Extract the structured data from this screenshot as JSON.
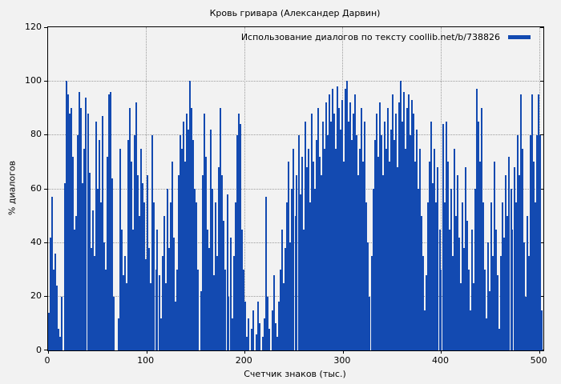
{
  "title": "Кровь гривара (Александер Дарвин)",
  "legend": {
    "label": "Использование диалогов по тексту coollib.net/b/738826"
  },
  "axes": {
    "xlabel": "Счетчик знаков (тыс.)",
    "ylabel": "% диалогов",
    "x_ticks": [
      0,
      100,
      200,
      300,
      400,
      500
    ],
    "y_ticks": [
      0,
      20,
      40,
      60,
      80,
      100,
      120
    ],
    "xlim": [
      0,
      504
    ],
    "ylim": [
      0,
      120
    ],
    "grid": true,
    "legend_position": "top-right-inside"
  },
  "colors": {
    "bar": "#134ab1",
    "background": "#f2f2f2",
    "grid": "#9d9d9d",
    "frame": "#000000",
    "text": "#000000"
  },
  "chart_data": {
    "type": "bar",
    "title": "Кровь гривара (Александер Дарвин)",
    "xlabel": "Счетчик знаков (тыс.)",
    "ylabel": "% диалогов",
    "xlim": [
      0,
      504
    ],
    "ylim": [
      0,
      120
    ],
    "series": [
      {
        "name": "Использование диалогов по тексту coollib.net/b/738826",
        "points": [
          [
            0.8,
            14
          ],
          [
            2.4,
            42
          ],
          [
            4.1,
            57
          ],
          [
            5.7,
            30
          ],
          [
            7.4,
            36
          ],
          [
            9.0,
            24
          ],
          [
            10.7,
            8
          ],
          [
            12.3,
            5
          ],
          [
            14.0,
            20
          ],
          [
            15.6,
            0
          ],
          [
            17.3,
            62
          ],
          [
            18.9,
            100
          ],
          [
            20.6,
            95
          ],
          [
            22.2,
            88
          ],
          [
            23.9,
            90
          ],
          [
            25.5,
            72
          ],
          [
            27.2,
            45
          ],
          [
            28.8,
            50
          ],
          [
            30.5,
            80
          ],
          [
            32.1,
            96
          ],
          [
            33.8,
            90
          ],
          [
            35.4,
            62
          ],
          [
            37.1,
            75
          ],
          [
            38.7,
            94
          ],
          [
            40.4,
            88
          ],
          [
            42.0,
            66
          ],
          [
            43.7,
            38
          ],
          [
            45.3,
            52
          ],
          [
            47.0,
            35
          ],
          [
            48.6,
            85
          ],
          [
            50.3,
            60
          ],
          [
            51.9,
            78
          ],
          [
            53.6,
            55
          ],
          [
            55.2,
            87
          ],
          [
            56.9,
            40
          ],
          [
            58.5,
            30
          ],
          [
            60.2,
            72
          ],
          [
            61.8,
            95
          ],
          [
            63.5,
            96
          ],
          [
            65.1,
            64
          ],
          [
            66.8,
            20
          ],
          [
            68.4,
            0
          ],
          [
            70.1,
            0
          ],
          [
            71.7,
            12
          ],
          [
            73.4,
            75
          ],
          [
            75.0,
            45
          ],
          [
            76.7,
            28
          ],
          [
            78.3,
            35
          ],
          [
            80.0,
            25
          ],
          [
            81.6,
            78
          ],
          [
            83.3,
            90
          ],
          [
            84.9,
            70
          ],
          [
            86.6,
            45
          ],
          [
            88.2,
            80
          ],
          [
            89.9,
            92
          ],
          [
            91.5,
            65
          ],
          [
            93.2,
            50
          ],
          [
            94.8,
            75
          ],
          [
            96.5,
            62
          ],
          [
            98.1,
            55
          ],
          [
            99.8,
            34
          ],
          [
            101.4,
            65
          ],
          [
            103.1,
            38
          ],
          [
            104.7,
            25
          ],
          [
            106.4,
            80
          ],
          [
            108.0,
            55
          ],
          [
            109.7,
            30
          ],
          [
            111.3,
            45
          ],
          [
            113.0,
            28
          ],
          [
            114.6,
            12
          ],
          [
            116.3,
            35
          ],
          [
            117.9,
            50
          ],
          [
            119.6,
            25
          ],
          [
            121.2,
            60
          ],
          [
            122.9,
            38
          ],
          [
            124.5,
            55
          ],
          [
            126.2,
            70
          ],
          [
            127.8,
            42
          ],
          [
            129.5,
            18
          ],
          [
            131.1,
            30
          ],
          [
            132.8,
            65
          ],
          [
            134.4,
            80
          ],
          [
            136.1,
            75
          ],
          [
            137.7,
            85
          ],
          [
            139.4,
            70
          ],
          [
            141.0,
            88
          ],
          [
            142.7,
            82
          ],
          [
            144.3,
            100
          ],
          [
            146.0,
            90
          ],
          [
            147.6,
            78
          ],
          [
            149.3,
            60
          ],
          [
            150.9,
            55
          ],
          [
            152.6,
            30
          ],
          [
            154.2,
            0
          ],
          [
            155.9,
            22
          ],
          [
            157.5,
            65
          ],
          [
            159.2,
            88
          ],
          [
            160.8,
            72
          ],
          [
            162.5,
            45
          ],
          [
            164.1,
            38
          ],
          [
            165.8,
            82
          ],
          [
            167.4,
            60
          ],
          [
            169.1,
            28
          ],
          [
            170.7,
            55
          ],
          [
            172.4,
            35
          ],
          [
            174.0,
            68
          ],
          [
            175.7,
            90
          ],
          [
            177.3,
            65
          ],
          [
            179.0,
            48
          ],
          [
            180.6,
            30
          ],
          [
            182.3,
            58
          ],
          [
            183.9,
            20
          ],
          [
            185.6,
            42
          ],
          [
            187.2,
            12
          ],
          [
            188.9,
            35
          ],
          [
            190.5,
            55
          ],
          [
            192.2,
            80
          ],
          [
            193.8,
            88
          ],
          [
            195.5,
            84
          ],
          [
            197.1,
            45
          ],
          [
            198.8,
            30
          ],
          [
            200.4,
            18
          ],
          [
            202.1,
            5
          ],
          [
            203.7,
            12
          ],
          [
            205.4,
            0
          ],
          [
            207.0,
            8
          ],
          [
            208.7,
            15
          ],
          [
            210.3,
            0
          ],
          [
            212.0,
            6
          ],
          [
            213.6,
            18
          ],
          [
            215.3,
            10
          ],
          [
            216.9,
            0
          ],
          [
            218.6,
            5
          ],
          [
            220.2,
            12
          ],
          [
            221.9,
            57
          ],
          [
            223.5,
            20
          ],
          [
            225.2,
            8
          ],
          [
            226.8,
            0
          ],
          [
            228.5,
            15
          ],
          [
            230.1,
            28
          ],
          [
            231.8,
            10
          ],
          [
            233.4,
            5
          ],
          [
            235.1,
            18
          ],
          [
            236.7,
            30
          ],
          [
            238.4,
            45
          ],
          [
            240.0,
            25
          ],
          [
            241.7,
            38
          ],
          [
            243.3,
            55
          ],
          [
            245.0,
            70
          ],
          [
            246.6,
            40
          ],
          [
            248.3,
            60
          ],
          [
            249.9,
            75
          ],
          [
            251.6,
            50
          ],
          [
            253.2,
            65
          ],
          [
            254.9,
            80
          ],
          [
            256.5,
            58
          ],
          [
            258.2,
            72
          ],
          [
            259.8,
            45
          ],
          [
            261.5,
            85
          ],
          [
            263.1,
            68
          ],
          [
            264.8,
            75
          ],
          [
            266.4,
            55
          ],
          [
            268.1,
            88
          ],
          [
            269.7,
            70
          ],
          [
            271.4,
            60
          ],
          [
            273.0,
            78
          ],
          [
            274.7,
            90
          ],
          [
            276.3,
            72
          ],
          [
            278.0,
            65
          ],
          [
            279.6,
            85
          ],
          [
            281.3,
            75
          ],
          [
            282.9,
            92
          ],
          [
            284.6,
            80
          ],
          [
            286.2,
            95
          ],
          [
            287.9,
            85
          ],
          [
            289.5,
            97
          ],
          [
            291.2,
            88
          ],
          [
            292.8,
            75
          ],
          [
            294.5,
            98
          ],
          [
            296.1,
            90
          ],
          [
            297.8,
            82
          ],
          [
            299.4,
            93
          ],
          [
            301.0,
            70
          ],
          [
            302.7,
            97
          ],
          [
            304.3,
            100
          ],
          [
            306.0,
            85
          ],
          [
            307.6,
            92
          ],
          [
            309.3,
            78
          ],
          [
            310.9,
            88
          ],
          [
            312.6,
            95
          ],
          [
            314.2,
            80
          ],
          [
            315.9,
            65
          ],
          [
            317.5,
            75
          ],
          [
            319.2,
            90
          ],
          [
            320.8,
            70
          ],
          [
            322.5,
            85
          ],
          [
            324.1,
            55
          ],
          [
            325.8,
            40
          ],
          [
            327.4,
            20
          ],
          [
            329.1,
            35
          ],
          [
            330.7,
            60
          ],
          [
            332.4,
            78
          ],
          [
            334.0,
            88
          ],
          [
            335.7,
            72
          ],
          [
            337.3,
            92
          ],
          [
            339.0,
            80
          ],
          [
            340.6,
            65
          ],
          [
            342.3,
            85
          ],
          [
            343.9,
            75
          ],
          [
            345.6,
            90
          ],
          [
            347.2,
            70
          ],
          [
            348.9,
            82
          ],
          [
            350.5,
            95
          ],
          [
            352.2,
            78
          ],
          [
            353.8,
            88
          ],
          [
            355.5,
            68
          ],
          [
            357.1,
            92
          ],
          [
            358.8,
            100
          ],
          [
            360.4,
            85
          ],
          [
            362.1,
            96
          ],
          [
            363.7,
            75
          ],
          [
            365.4,
            90
          ],
          [
            367.0,
            95
          ],
          [
            368.7,
            80
          ],
          [
            370.3,
            93
          ],
          [
            372.0,
            88
          ],
          [
            373.6,
            70
          ],
          [
            375.3,
            82
          ],
          [
            376.9,
            60
          ],
          [
            378.6,
            75
          ],
          [
            380.2,
            50
          ],
          [
            381.9,
            35
          ],
          [
            383.5,
            15
          ],
          [
            385.2,
            28
          ],
          [
            386.8,
            55
          ],
          [
            388.5,
            70
          ],
          [
            390.1,
            85
          ],
          [
            391.8,
            62
          ],
          [
            393.4,
            75
          ],
          [
            395.1,
            55
          ],
          [
            396.7,
            68
          ],
          [
            398.4,
            45
          ],
          [
            400.0,
            30
          ],
          [
            401.7,
            84
          ],
          [
            403.3,
            55
          ],
          [
            405.0,
            85
          ],
          [
            406.6,
            70
          ],
          [
            408.3,
            45
          ],
          [
            409.9,
            60
          ],
          [
            411.6,
            35
          ],
          [
            413.2,
            75
          ],
          [
            414.9,
            50
          ],
          [
            416.5,
            65
          ],
          [
            418.2,
            42
          ],
          [
            419.8,
            25
          ],
          [
            421.5,
            55
          ],
          [
            423.1,
            38
          ],
          [
            424.8,
            68
          ],
          [
            426.4,
            48
          ],
          [
            428.1,
            30
          ],
          [
            429.7,
            15
          ],
          [
            431.4,
            45
          ],
          [
            433.0,
            25
          ],
          [
            434.7,
            60
          ],
          [
            436.3,
            97
          ],
          [
            438.0,
            85
          ],
          [
            439.6,
            70
          ],
          [
            441.3,
            90
          ],
          [
            442.9,
            55
          ],
          [
            444.6,
            30
          ],
          [
            446.2,
            12
          ],
          [
            447.9,
            40
          ],
          [
            449.5,
            22
          ],
          [
            451.2,
            55
          ],
          [
            452.8,
            35
          ],
          [
            454.5,
            70
          ],
          [
            456.1,
            45
          ],
          [
            457.8,
            28
          ],
          [
            459.4,
            8
          ],
          [
            461.1,
            35
          ],
          [
            462.7,
            55
          ],
          [
            464.4,
            42
          ],
          [
            466.0,
            65
          ],
          [
            467.7,
            50
          ],
          [
            469.3,
            72
          ],
          [
            471.0,
            60
          ],
          [
            472.6,
            45
          ],
          [
            474.3,
            68
          ],
          [
            475.9,
            55
          ],
          [
            477.6,
            80
          ],
          [
            479.2,
            65
          ],
          [
            480.9,
            95
          ],
          [
            482.5,
            75
          ],
          [
            484.2,
            40
          ],
          [
            485.8,
            20
          ],
          [
            487.5,
            50
          ],
          [
            489.1,
            35
          ],
          [
            490.8,
            80
          ],
          [
            492.4,
            95
          ],
          [
            494.1,
            70
          ],
          [
            495.7,
            55
          ],
          [
            497.4,
            80
          ],
          [
            499.0,
            95
          ],
          [
            500.7,
            80
          ],
          [
            502.3,
            15
          ]
        ]
      }
    ]
  }
}
